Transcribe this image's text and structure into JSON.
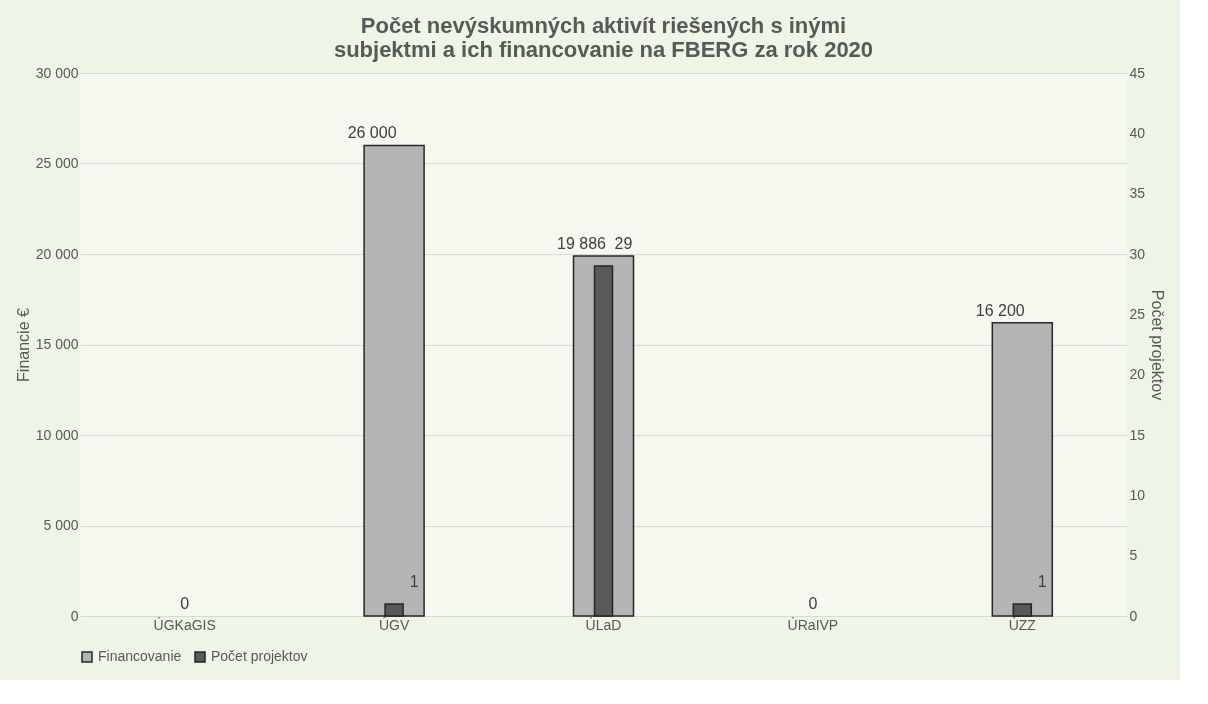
{
  "chart_data": {
    "type": "bar",
    "title": "Počet nevýskumných aktivít riešených s inými subjektmi a ich financovanie na FBERG za rok 2020",
    "categories": [
      "ÚGKaGIS",
      "ÚGV",
      "ÚLaD",
      "ÚRaIVP",
      "ÚZZ"
    ],
    "series": [
      {
        "name": "Financovanie",
        "color": "#b4b4b4",
        "values": [
          0,
          26000,
          19886,
          0,
          16200
        ],
        "value_labels": [
          "0",
          "26 000",
          "19 886",
          "0",
          "16 200"
        ]
      },
      {
        "name": "Počet projektov",
        "color": "#595959",
        "axis": "y2",
        "values": [
          0,
          1,
          29,
          0,
          1
        ],
        "value_labels": [
          null,
          "1",
          "29",
          null,
          "1"
        ]
      }
    ],
    "ylabel": "Financie €",
    "y2label": "Počet projektov",
    "ylim": [
      0,
      30000
    ],
    "yticks": [
      0,
      {
        "value": 5000,
        "label": "5 000"
      },
      {
        "value": 10000,
        "label": "10 000"
      },
      {
        "value": 15000,
        "label": "15 000"
      },
      {
        "value": 20000,
        "label": "20 000"
      },
      {
        "value": 25000,
        "label": "25 000"
      },
      {
        "value": 30000,
        "label": "30 000"
      }
    ],
    "y2lim": [
      0,
      45
    ],
    "y2ticks": [
      0,
      5,
      10,
      15,
      20,
      25,
      30,
      35,
      40,
      45
    ],
    "grid": "y",
    "legend": "bottom"
  }
}
